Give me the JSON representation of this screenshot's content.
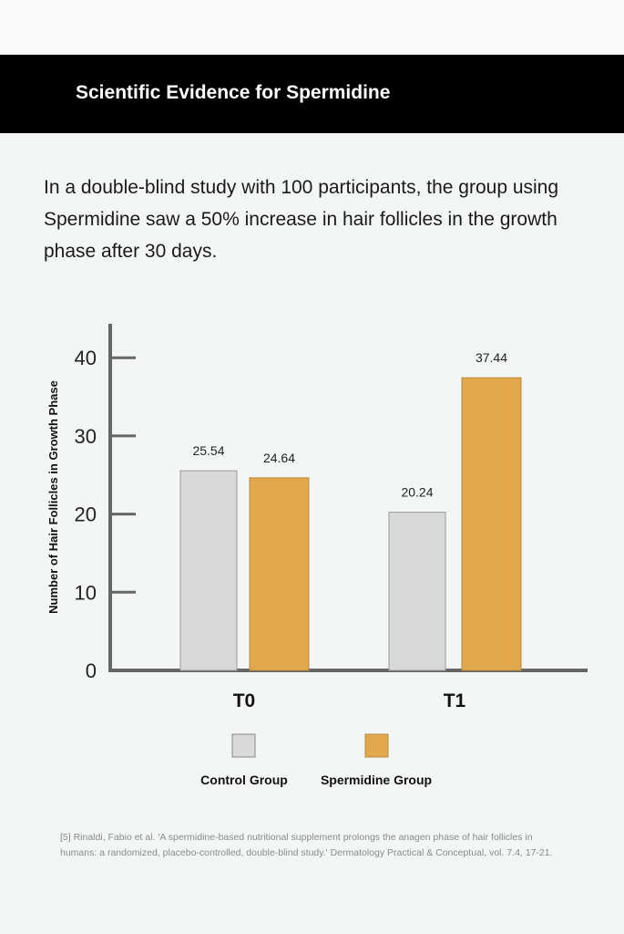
{
  "header": {
    "title": "Scientific Evidence for Spermidine"
  },
  "intro": "In a double-blind study with 100 participants, the group using Spermidine saw a 50% increase in hair follicles in the growth phase after 30 days.",
  "chart_data": {
    "type": "bar",
    "title": "",
    "categories": [
      "T0",
      "T1"
    ],
    "series": [
      {
        "name": "Control Group",
        "values": [
          25.54,
          20.24
        ],
        "color": "#d9d9d9"
      },
      {
        "name": "Spermidine Group",
        "values": [
          24.64,
          37.44
        ],
        "color": "#e1a94c"
      }
    ],
    "data_labels": [
      [
        "25.54",
        "20.24"
      ],
      [
        "24.64",
        "37.44"
      ]
    ],
    "ylabel": "Number of Hair Follicles in Growth Phase",
    "xlabel": "",
    "ylim": [
      0,
      44
    ],
    "yticks": [
      0,
      10,
      20,
      30,
      40
    ],
    "ytick_labels": [
      "0",
      "10",
      "20",
      "30",
      "40"
    ],
    "grid": false,
    "legend_position": "bottom"
  },
  "reference": "[5] Rinaldi, Fabio et al. 'A spermidine-based nutritional supplement prolongs the anagen phase of hair follicles in humans: a randomized, placebo-controlled, double-blind study.' Dermatology Practical & Conceptual, vol. 7.4, 17-21."
}
